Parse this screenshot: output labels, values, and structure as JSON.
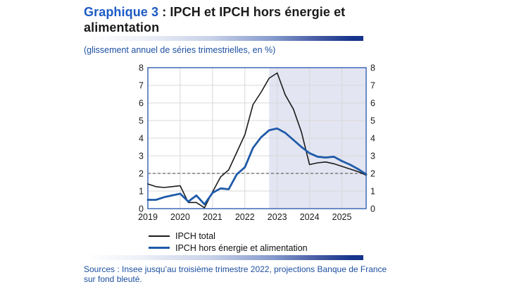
{
  "header": {
    "title_prefix": "Graphique 3",
    "title_rest": " : IPCH et IPCH hors énergie et alimentation",
    "subtitle": "(glissement annuel de séries trimestrielles, en %)"
  },
  "chart_data": {
    "type": "line",
    "title": "IPCH et IPCH hors énergie et alimentation",
    "unit": "glissement annuel de séries trimestrielles, en %",
    "frequency": "quarterly",
    "x_labels": [
      "2019",
      "2020",
      "2021",
      "2022",
      "2023",
      "2024",
      "2025"
    ],
    "periods": [
      "2019T1",
      "2019T2",
      "2019T3",
      "2019T4",
      "2020T1",
      "2020T2",
      "2020T3",
      "2020T4",
      "2021T1",
      "2021T2",
      "2021T3",
      "2021T4",
      "2022T1",
      "2022T2",
      "2022T3",
      "2022T4",
      "2023T1",
      "2023T2",
      "2023T3",
      "2023T4",
      "2024T1",
      "2024T2",
      "2024T3",
      "2024T4",
      "2025T1",
      "2025T2",
      "2025T3",
      "2025T4"
    ],
    "ylim": [
      0,
      8
    ],
    "yticks": [
      0,
      1,
      2,
      3,
      4,
      5,
      6,
      7,
      8
    ],
    "y_axis_both_sides": true,
    "reference_line_y": 2,
    "projection_start_index": 15,
    "projection_start_period": "2022T4",
    "series": [
      {
        "name": "IPCH total",
        "color": "#1c1c1c",
        "stroke_width": 1.6,
        "values": [
          1.4,
          1.25,
          1.2,
          1.25,
          1.3,
          0.35,
          0.35,
          0.05,
          0.95,
          1.8,
          2.2,
          3.2,
          4.2,
          5.9,
          6.6,
          7.4,
          7.7,
          6.45,
          5.65,
          4.35,
          2.5,
          2.6,
          2.65,
          2.55,
          2.4,
          2.25,
          2.1,
          1.9
        ]
      },
      {
        "name": "IPCH hors énergie et alimentation",
        "color": "#1f5aa9",
        "stroke_width": 2.8,
        "values": [
          0.5,
          0.5,
          0.65,
          0.75,
          0.85,
          0.4,
          0.75,
          0.25,
          0.9,
          1.15,
          1.1,
          1.95,
          2.35,
          3.45,
          4.05,
          4.45,
          4.55,
          4.3,
          3.9,
          3.5,
          3.15,
          2.95,
          2.9,
          2.95,
          2.7,
          2.5,
          2.25,
          1.95
        ]
      }
    ],
    "colors": {
      "frame": "#4a72ba",
      "grid": "#d8d8d8",
      "projection_shade": "#e3e5f2",
      "reference_dash": "#666666",
      "tick_text": "#1a1a1a"
    },
    "legend_position": "bottom-left"
  },
  "footer": {
    "sources_line1": "Sources : Insee jusqu’au troisième trimestre 2022, projections Banque de France",
    "sources_line2": "sur fond bleuté."
  },
  "ui_colors": {
    "title_accent_blue": "#1d5bc4",
    "text_blue": "#1d4fa0",
    "gradient_bar_end": "#16348c"
  }
}
